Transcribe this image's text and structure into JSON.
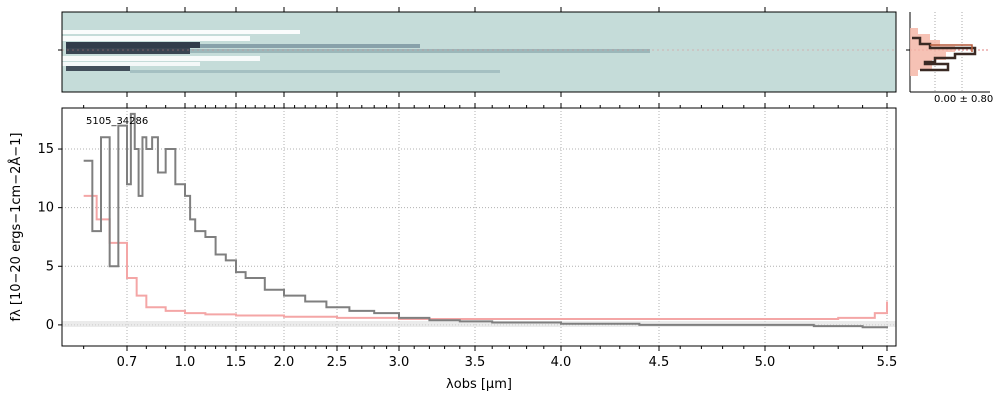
{
  "chart_data": {
    "type": "line",
    "annotation": "5105_34286",
    "xlabel": "λobs [μm]",
    "ylabel": "fλ [10−20 ergs−1cm−2Å−1]",
    "x_ticks": [
      "0.7",
      "1.0",
      "1.5",
      "2.0",
      "2.5",
      "3.0",
      "3.5",
      "4.0",
      "4.5",
      "5.0",
      "5.5"
    ],
    "y_ticks": [
      "0",
      "5",
      "10",
      "15"
    ],
    "xlim": [
      0.55,
      5.53
    ],
    "ylim": [
      -1.8,
      18.5
    ],
    "x_scale": "piecewise (approximately 1/λ-like spacing)",
    "grid": true,
    "colors": {
      "data": "#7f7f7f",
      "error": "#f4a6a6",
      "image_bg": "#c5dcd9",
      "image_dark": "#202a3a"
    },
    "series": [
      {
        "x": [
          0.6,
          0.62,
          0.64,
          0.66,
          0.68,
          0.7,
          0.72,
          0.74,
          0.76,
          0.78,
          0.8,
          0.83,
          0.86,
          0.9,
          0.95,
          1.0,
          1.05,
          1.1,
          1.2,
          1.3,
          1.4,
          1.5,
          1.6,
          1.8,
          2.0,
          2.2,
          2.4,
          2.6,
          2.8,
          3.0,
          3.2,
          3.4,
          3.6,
          3.8,
          4.0,
          4.2,
          4.4,
          4.6,
          4.8,
          5.0,
          5.2,
          5.4,
          5.5
        ],
        "values": [
          14,
          8,
          16,
          5,
          17,
          12,
          18,
          15,
          11,
          16,
          15,
          16,
          13,
          15,
          12,
          11,
          9,
          8,
          7.5,
          6,
          5.5,
          4.5,
          4,
          3,
          2.5,
          2,
          1.5,
          1.2,
          1,
          0.6,
          0.4,
          0.3,
          0.2,
          0.2,
          0.1,
          0.1,
          0,
          0,
          0,
          0,
          -0.1,
          -0.2,
          -0.3
        ]
      },
      {
        "x": [
          0.6,
          0.63,
          0.66,
          0.7,
          0.75,
          0.8,
          0.9,
          1.0,
          1.2,
          1.5,
          2.0,
          2.5,
          3.0,
          3.5,
          4.0,
          4.5,
          5.0,
          5.3,
          5.45,
          5.5
        ],
        "values": [
          11,
          9,
          7,
          4,
          2.5,
          1.5,
          1.2,
          1,
          0.9,
          0.8,
          0.7,
          0.6,
          0.5,
          0.5,
          0.5,
          0.5,
          0.5,
          0.6,
          1,
          2
        ]
      }
    ],
    "profile_panel": {
      "label": "0.00 ± 0.80"
    }
  }
}
